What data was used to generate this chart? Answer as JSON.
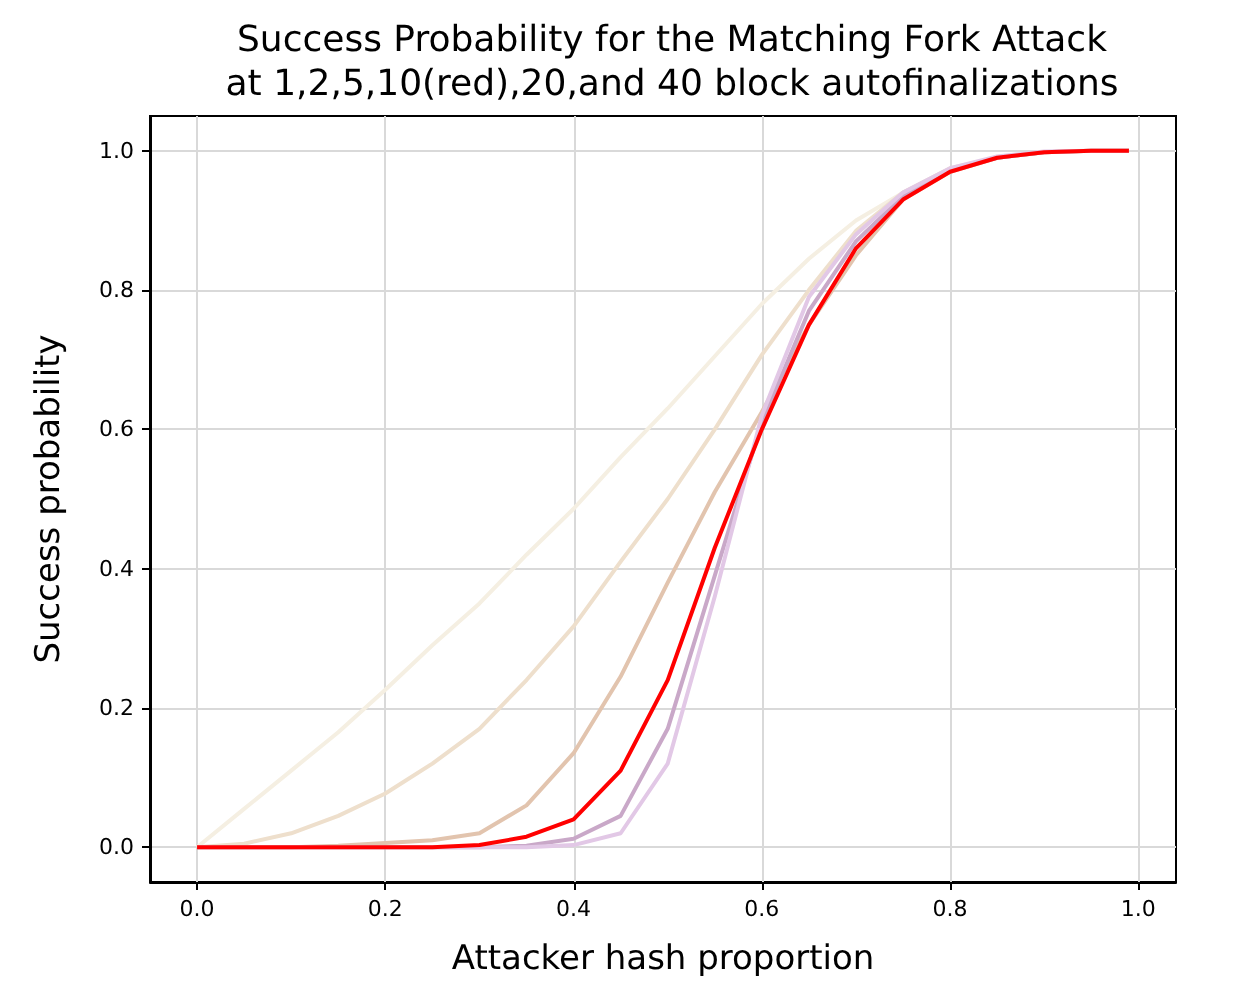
{
  "chart_data": {
    "type": "line",
    "title": "Success Probability for the Matching Fork Attack\nat 1,2,5,10(red),20,and 40 block autofinalizations",
    "xlabel": "Attacker hash proportion",
    "ylabel": "Success probability",
    "x": [
      0,
      0.05,
      0.1,
      0.15,
      0.2,
      0.25,
      0.3,
      0.35,
      0.4,
      0.45,
      0.5,
      0.55,
      0.6,
      0.65,
      0.7,
      0.75,
      0.8,
      0.85,
      0.9,
      0.95,
      0.99
    ],
    "series": [
      {
        "color": "#f5efe2",
        "values": [
          0,
          0.055,
          0.11,
          0.165,
          0.226,
          0.29,
          0.35,
          0.42,
          0.486,
          0.56,
          0.63,
          0.705,
          0.78,
          0.845,
          0.9,
          0.94,
          0.97,
          0.99,
          0.998,
          1,
          1
        ]
      },
      {
        "color": "#eedfcc",
        "values": [
          0,
          0.005,
          0.02,
          0.045,
          0.077,
          0.12,
          0.17,
          0.24,
          0.317,
          0.41,
          0.5,
          0.6,
          0.707,
          0.8,
          0.885,
          0.94,
          0.975,
          0.99,
          0.998,
          1,
          1
        ]
      },
      {
        "color": "#e2c4ae",
        "values": [
          0,
          0,
          0,
          0.002,
          0.006,
          0.01,
          0.02,
          0.06,
          0.135,
          0.245,
          0.38,
          0.51,
          0.625,
          0.75,
          0.85,
          0.93,
          0.97,
          0.99,
          0.998,
          1,
          1
        ]
      },
      {
        "color": "#c9a8c8",
        "values": [
          0,
          0,
          0,
          0,
          0,
          0,
          0,
          0.002,
          0.012,
          0.045,
          0.17,
          0.39,
          0.61,
          0.77,
          0.87,
          0.935,
          0.972,
          0.99,
          0.998,
          1,
          1
        ]
      },
      {
        "color": "#e2c8e6",
        "values": [
          0,
          0,
          0,
          0,
          0,
          0,
          0,
          0,
          0.003,
          0.02,
          0.12,
          0.36,
          0.62,
          0.79,
          0.88,
          0.94,
          0.975,
          0.992,
          0.999,
          1,
          1
        ]
      },
      {
        "color": "#ff0000",
        "values": [
          0,
          0,
          0,
          0,
          0,
          0,
          0.003,
          0.015,
          0.04,
          0.11,
          0.24,
          0.43,
          0.6,
          0.75,
          0.86,
          0.93,
          0.97,
          0.99,
          0.998,
          1,
          1
        ]
      }
    ],
    "xlim": [
      -0.05,
      1.04
    ],
    "ylim": [
      -0.05,
      1.05
    ],
    "xticks": [
      {
        "value": 0,
        "label": "0.0"
      },
      {
        "value": 0.2,
        "label": "0.2"
      },
      {
        "value": 0.4,
        "label": "0.4"
      },
      {
        "value": 0.6,
        "label": "0.6"
      },
      {
        "value": 0.8,
        "label": "0.8"
      },
      {
        "value": 1,
        "label": "1.0"
      }
    ],
    "yticks": [
      {
        "value": 0,
        "label": "0.0"
      },
      {
        "value": 0.2,
        "label": "0.2"
      },
      {
        "value": 0.4,
        "label": "0.4"
      },
      {
        "value": 0.6,
        "label": "0.6"
      },
      {
        "value": 0.8,
        "label": "0.8"
      },
      {
        "value": 1,
        "label": "1.0"
      }
    ],
    "grid": true,
    "marker": "none",
    "line_style": "solid"
  }
}
